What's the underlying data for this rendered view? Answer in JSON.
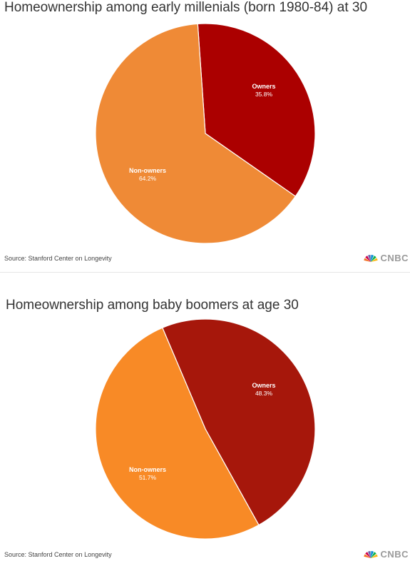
{
  "chart_data": [
    {
      "type": "pie",
      "title": "Homeownership among early millenials (born 1980-84) at 30",
      "slices": [
        {
          "name": "Owners",
          "value": 35.8,
          "value_label": "35.8%",
          "color": "#ab0000"
        },
        {
          "name": "Non-owners",
          "value": 64.2,
          "value_label": "64.2%",
          "color": "#ef8a36"
        }
      ],
      "source": "Source: Stanford Center on Longevity",
      "brand": "CNBC"
    },
    {
      "type": "pie",
      "title": "Homeownership among baby boomers at age 30",
      "slices": [
        {
          "name": "Owners",
          "value": 48.3,
          "value_label": "48.3%",
          "color": "#a6170b"
        },
        {
          "name": "Non-owners",
          "value": 51.7,
          "value_label": "51.7%",
          "color": "#f88a26"
        }
      ],
      "source": "Source: Stanford Center on Longevity",
      "brand": "CNBC"
    }
  ],
  "colors": {
    "peacock": [
      "#f37021",
      "#cc004c",
      "#6460aa",
      "#0089d0",
      "#0db14b",
      "#fcb711"
    ]
  },
  "icons": {
    "brand_logo": "peacock-icon"
  }
}
